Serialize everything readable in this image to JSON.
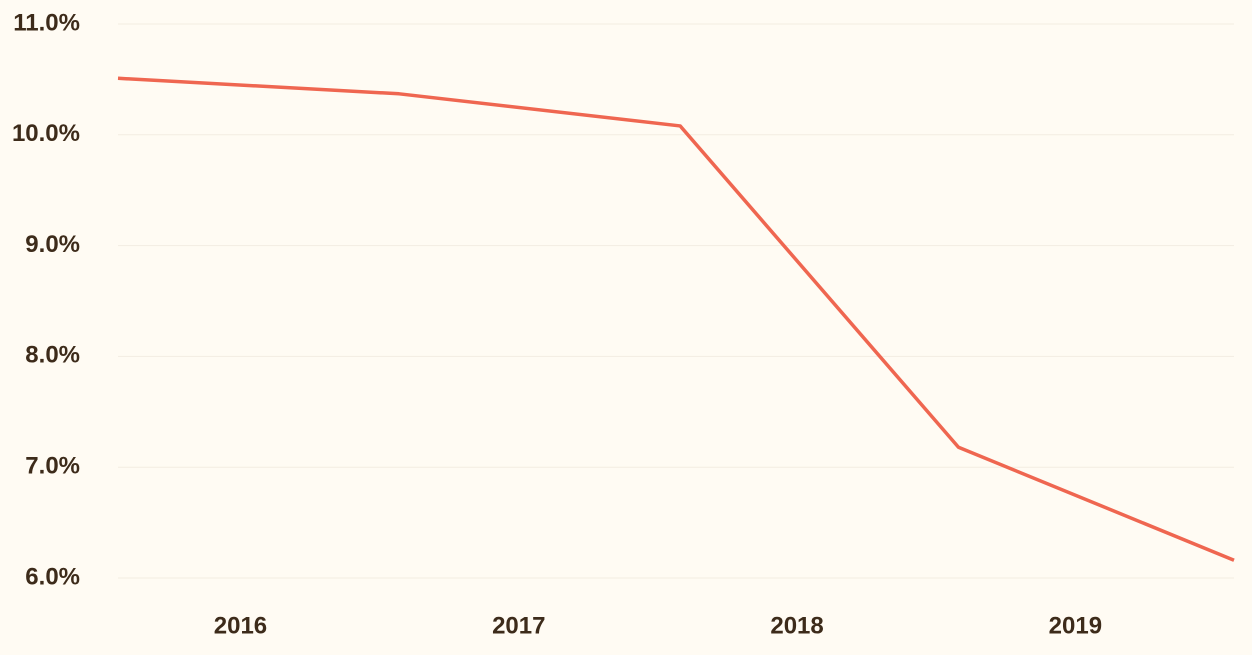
{
  "chart_data": {
    "type": "line",
    "x": [
      2015.56,
      2016.57,
      2017.58,
      2018.58,
      2019.57
    ],
    "series": [
      {
        "color": "#ef6650",
        "values": [
          10.51,
          10.37,
          10.08,
          7.18,
          6.16
        ]
      }
    ],
    "xlim": [
      2015.56,
      2019.57
    ],
    "xticks": [
      2016,
      2017,
      2018,
      2019
    ],
    "ylim": [
      6.0,
      11.0
    ],
    "yticks": [
      {
        "value": 6.0,
        "label": "6.0%"
      },
      {
        "value": 7.0,
        "label": "7.0%"
      },
      {
        "value": 8.0,
        "label": "8.0%"
      },
      {
        "value": 9.0,
        "label": "9.0%"
      },
      {
        "value": 10.0,
        "label": "10.0%"
      },
      {
        "value": 11.0,
        "label": "11.0%"
      }
    ],
    "grid": true
  }
}
